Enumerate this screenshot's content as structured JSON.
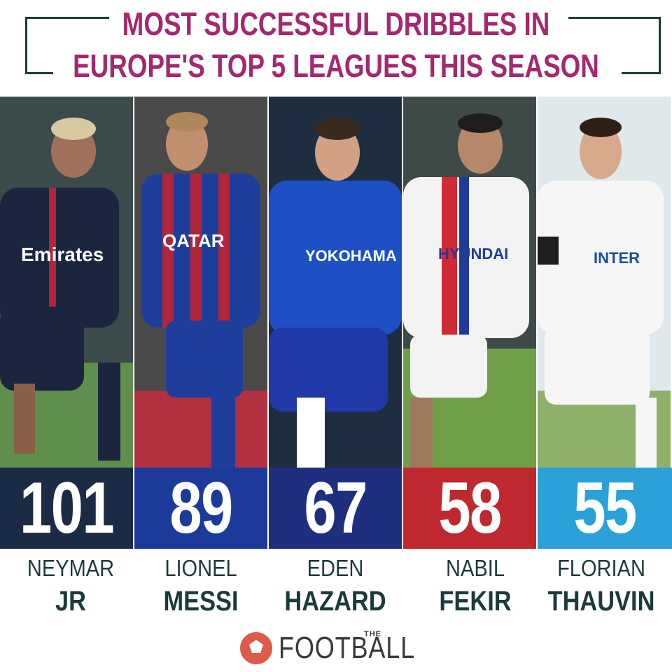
{
  "header": {
    "title_line1": "MOST SUCCESSFUL DRIBBLES IN",
    "title_line2": "EUROPE'S TOP 5 LEAGUES THIS SEASON"
  },
  "chart_data": {
    "type": "bar",
    "title": "MOST SUCCESSFUL DRIBBLES IN EUROPE'S TOP 5 LEAGUES THIS SEASON",
    "categories": [
      "NEYMAR JR",
      "LIONEL MESSI",
      "EDEN HAZARD",
      "NABIL FEKIR",
      "FLORIAN THAUVIN"
    ],
    "values": [
      101,
      89,
      67,
      58,
      55
    ],
    "players": [
      {
        "first": "NEYMAR",
        "last": "JR",
        "value": "101",
        "box_color": "#1c2b45"
      },
      {
        "first": "LIONEL",
        "last": "MESSI",
        "value": "89",
        "box_color": "#1b3a9a"
      },
      {
        "first": "EDEN",
        "last": "HAZARD",
        "value": "67",
        "box_color": "#1f2f80"
      },
      {
        "first": "NABIL",
        "last": "FEKIR",
        "value": "58",
        "box_color": "#c0282f"
      },
      {
        "first": "FLORIAN",
        "last": "THAUVIN",
        "value": "55",
        "box_color": "#2aa1d8"
      }
    ]
  },
  "logo": {
    "text": "FOOTBALL",
    "small": "THE"
  },
  "colors": {
    "title": "#a4286f",
    "frame": "#1d3a3a",
    "name_text": "#1d3a3a"
  }
}
